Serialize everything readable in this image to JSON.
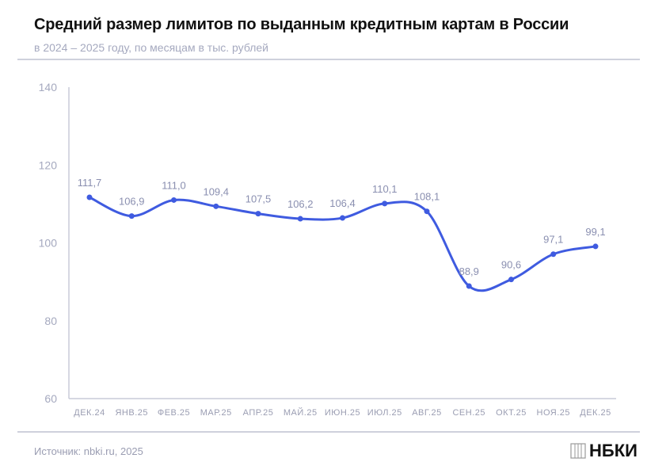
{
  "title": "Средний размер лимитов по выданным кредитным картам в России",
  "subtitle": "в 2024 – 2025 году, по месяцам в тыс. рублей",
  "source": "Источник: nbki.ru, 2025",
  "logo": "НБКИ",
  "colors": {
    "line": "#3f5be0",
    "labels": "#8a8fb0",
    "axis": "#c9cbd8"
  },
  "chart_data": {
    "type": "line",
    "categories": [
      "ДЕК.24",
      "ЯНВ.25",
      "ФЕВ.25",
      "МАР.25",
      "АПР.25",
      "МАЙ.25",
      "ИЮН.25",
      "ИЮЛ.25",
      "АВГ.25",
      "СЕН.25",
      "ОКТ.25",
      "НОЯ.25",
      "ДЕК.25"
    ],
    "values": [
      111.7,
      106.9,
      111.0,
      109.4,
      107.5,
      106.2,
      106.4,
      110.1,
      108.1,
      88.9,
      90.6,
      97.1,
      99.1
    ],
    "value_labels": [
      "111,7",
      "106,9",
      "111,0",
      "109,4",
      "107,5",
      "106,2",
      "106,4",
      "110,1",
      "108,1",
      "88,9",
      "90,6",
      "97,1",
      "99,1"
    ],
    "ylim": [
      60,
      140
    ],
    "yticks": [
      60,
      80,
      100,
      120,
      140
    ],
    "grid": false
  }
}
